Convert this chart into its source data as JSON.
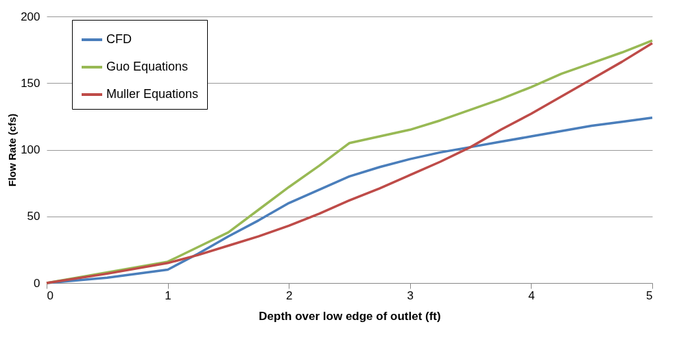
{
  "chart_data": {
    "type": "line",
    "xlabel": "Depth over low edge of outlet (ft)",
    "ylabel": "Flow Rate (cfs)",
    "xlim": [
      0,
      5
    ],
    "xticks": [
      0,
      1,
      2,
      3,
      4,
      5
    ],
    "ylim": [
      0,
      200
    ],
    "yticks": [
      0,
      50,
      100,
      150,
      200
    ],
    "grid": "y",
    "legend": "top left",
    "series": [
      {
        "name": "CFD",
        "color": "#4a7ebb",
        "x": [
          0,
          0.5,
          1,
          1.25,
          1.5,
          1.75,
          2,
          2.25,
          2.5,
          2.75,
          3,
          3.25,
          3.5,
          3.75,
          4,
          4.25,
          4.5,
          4.75,
          5
        ],
        "values": [
          0,
          4,
          10,
          22,
          35,
          47,
          60,
          70,
          80,
          87,
          93,
          98,
          102,
          106,
          110,
          114,
          118,
          121,
          124
        ]
      },
      {
        "name": "Guo Equations",
        "color": "#98b954",
        "x": [
          0,
          0.5,
          0.75,
          1,
          1.25,
          1.5,
          1.75,
          2,
          2.25,
          2.5,
          2.75,
          3,
          3.25,
          3.5,
          3.75,
          4,
          4.25,
          4.5,
          4.75,
          5
        ],
        "values": [
          0,
          8,
          12,
          16,
          27,
          38,
          55,
          72,
          88,
          105,
          110,
          115,
          122,
          130,
          138,
          147,
          157,
          165,
          173,
          182
        ]
      },
      {
        "name": "Muller Equations",
        "color": "#be4b48",
        "x": [
          0,
          0.5,
          1,
          1.25,
          1.5,
          1.75,
          2,
          2.25,
          2.5,
          2.75,
          3,
          3.25,
          3.5,
          3.75,
          4,
          4.25,
          4.5,
          4.75,
          5
        ],
        "values": [
          0,
          7,
          15,
          21,
          28,
          35,
          43,
          52,
          62,
          71,
          81,
          91,
          102,
          115,
          127,
          140,
          153,
          166,
          180
        ]
      }
    ]
  }
}
